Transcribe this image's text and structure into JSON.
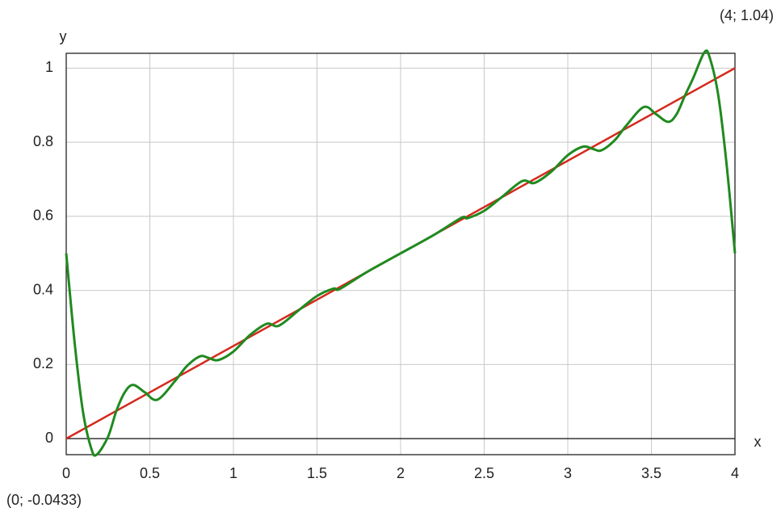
{
  "chart_data": {
    "type": "line",
    "x_label": "x",
    "y_label": "y",
    "annotations": [
      "(4; 1.04)",
      "(0; -0.0433)"
    ],
    "xlim": [
      0,
      4
    ],
    "ylim": [
      -0.0433,
      1.04
    ],
    "xticks": [
      0,
      0.5,
      1,
      1.5,
      2,
      2.5,
      3,
      3.5,
      4
    ],
    "yticks": [
      0,
      0.2,
      0.4,
      0.6,
      0.8,
      1
    ],
    "grid": true,
    "series": [
      {
        "color": "#d42a1e",
        "x": [
          0,
          4
        ],
        "values": [
          0,
          1
        ]
      },
      {
        "color": "#1f8a1f",
        "x": [
          0,
          0.05,
          0.1,
          0.15,
          0.182,
          0.25,
          0.3,
          0.35,
          0.4,
          0.47,
          0.545,
          0.65,
          0.72,
          0.8,
          0.85,
          0.909,
          1.0,
          1.1,
          1.2,
          1.273,
          1.4,
          1.5,
          1.6,
          1.636,
          1.8,
          2.0,
          2.2,
          2.364,
          2.4,
          2.5,
          2.6,
          2.727,
          2.8,
          2.9,
          3.0,
          3.091,
          3.15,
          3.2,
          3.28,
          3.35,
          3.455,
          3.53,
          3.6,
          3.65,
          3.7,
          3.75,
          3.818,
          3.85,
          3.9,
          3.95,
          4
        ],
        "values": [
          0.5,
          0.26,
          0.073,
          -0.027,
          -0.0433,
          0.005,
          0.075,
          0.125,
          0.145,
          0.125,
          0.105,
          0.155,
          0.195,
          0.222,
          0.218,
          0.212,
          0.235,
          0.28,
          0.31,
          0.305,
          0.35,
          0.385,
          0.405,
          0.404,
          0.45,
          0.5,
          0.55,
          0.596,
          0.595,
          0.615,
          0.65,
          0.695,
          0.69,
          0.72,
          0.765,
          0.788,
          0.782,
          0.778,
          0.805,
          0.845,
          0.895,
          0.875,
          0.855,
          0.875,
          0.925,
          0.973,
          1.0433,
          1.027,
          0.927,
          0.74,
          0.5
        ]
      }
    ]
  }
}
